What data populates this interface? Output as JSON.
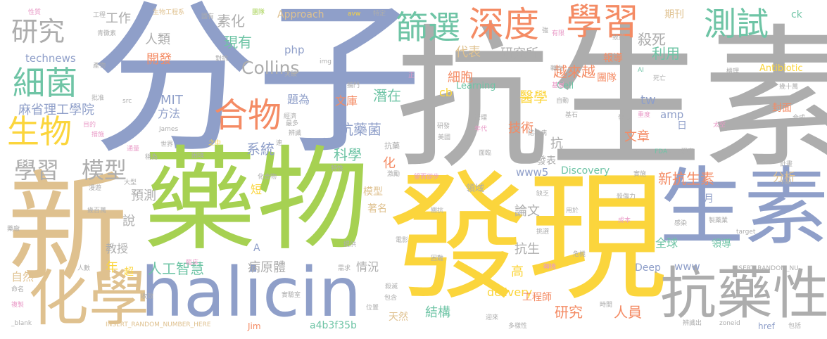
{
  "palette": {
    "blue": "#8f9fc9",
    "gray": "#adadad",
    "green": "#a6d152",
    "yellow": "#fbd53c",
    "orange": "#f48b64",
    "tan": "#dfc18f",
    "teal": "#6ec4a5",
    "pink": "#e99ac7"
  },
  "words": [
    {
      "text": "分子",
      "color": "blue"
    },
    {
      "text": "抗生素",
      "color": "gray"
    },
    {
      "text": "藥物",
      "color": "green"
    },
    {
      "text": "發現",
      "color": "yellow"
    },
    {
      "text": "新",
      "color": "tan"
    },
    {
      "text": "halicin",
      "color": "blue"
    },
    {
      "text": "生素",
      "color": "blue"
    },
    {
      "text": "抗藥性",
      "color": "gray"
    },
    {
      "text": "化學",
      "color": "tan"
    },
    {
      "text": "深度",
      "color": "orange"
    },
    {
      "text": "學習",
      "color": "orange"
    },
    {
      "text": "測試",
      "color": "teal"
    },
    {
      "text": "篩選",
      "color": "teal"
    },
    {
      "text": "研究",
      "color": "gray"
    },
    {
      "text": "細菌",
      "color": "teal"
    },
    {
      "text": "合物",
      "color": "orange"
    },
    {
      "text": "生物",
      "color": "yellow"
    },
    {
      "text": "學習",
      "color": "gray"
    },
    {
      "text": "模型",
      "color": "gray"
    },
    {
      "text": "工作",
      "color": "gray"
    },
    {
      "text": "素化",
      "color": "gray"
    },
    {
      "text": "人類",
      "color": "gray"
    },
    {
      "text": "現有",
      "color": "teal"
    },
    {
      "text": "Collins",
      "color": "gray"
    },
    {
      "text": "開發",
      "color": "orange"
    },
    {
      "text": "technews",
      "color": "blue"
    },
    {
      "text": "php",
      "color": "blue"
    },
    {
      "text": "細胞",
      "color": "orange"
    },
    {
      "text": "代表",
      "color": "tan"
    },
    {
      "text": "研究所",
      "color": "gray"
    },
    {
      "text": "越來越",
      "color": "orange"
    },
    {
      "text": "殺死",
      "color": "gray"
    },
    {
      "text": "利用",
      "color": "teal"
    },
    {
      "text": "期刊",
      "color": "tan"
    },
    {
      "text": "Approach",
      "color": "tan"
    },
    {
      "text": "ck",
      "color": "teal"
    },
    {
      "text": "Antibiotic",
      "color": "yellow"
    },
    {
      "text": "麻省理工學院",
      "color": "blue"
    },
    {
      "text": "MIT",
      "color": "blue"
    },
    {
      "text": "方法",
      "color": "blue"
    },
    {
      "text": "題為",
      "color": "blue"
    },
    {
      "text": "文庫",
      "color": "orange"
    },
    {
      "text": "潛在",
      "color": "teal"
    },
    {
      "text": "cb",
      "color": "yellow"
    },
    {
      "text": "醫學",
      "color": "yellow"
    },
    {
      "text": "Cell",
      "color": "teal"
    },
    {
      "text": "Learning",
      "color": "teal"
    },
    {
      "text": "報導",
      "color": "orange"
    },
    {
      "text": "tw",
      "color": "blue"
    },
    {
      "text": "團隊",
      "color": "orange"
    },
    {
      "text": "amp",
      "color": "blue"
    },
    {
      "text": "日",
      "color": "blue"
    },
    {
      "text": "抗藥菌",
      "color": "blue"
    },
    {
      "text": "技術",
      "color": "orange"
    },
    {
      "text": "文章",
      "color": "orange"
    },
    {
      "text": "封面",
      "color": "orange"
    },
    {
      "text": "系統",
      "color": "blue"
    },
    {
      "text": "科學",
      "color": "teal"
    },
    {
      "text": "抗",
      "color": "gray"
    },
    {
      "text": "發表",
      "color": "gray"
    },
    {
      "text": "化",
      "color": "orange"
    },
    {
      "text": "www5",
      "color": "blue"
    },
    {
      "text": "Discovery",
      "color": "teal"
    },
    {
      "text": "新抗生素",
      "color": "orange"
    },
    {
      "text": "分析",
      "color": "tan"
    },
    {
      "text": "預測",
      "color": "gray"
    },
    {
      "text": "短",
      "color": "yellow"
    },
    {
      "text": "模型",
      "color": "tan"
    },
    {
      "text": "領域",
      "color": "gray"
    },
    {
      "text": "著名",
      "color": "tan"
    },
    {
      "text": "說",
      "color": "gray"
    },
    {
      "text": "論文",
      "color": "gray"
    },
    {
      "text": "月",
      "color": "blue"
    },
    {
      "text": "教授",
      "color": "gray"
    },
    {
      "text": "A",
      "color": "blue"
    },
    {
      "text": "抗生",
      "color": "gray"
    },
    {
      "text": "全球",
      "color": "teal"
    },
    {
      "text": "領導",
      "color": "teal"
    },
    {
      "text": "年",
      "color": "yellow"
    },
    {
      "text": "人工智慧",
      "color": "teal"
    },
    {
      "text": "病原體",
      "color": "gray"
    },
    {
      "text": "情況",
      "color": "gray"
    },
    {
      "text": "高",
      "color": "yellow"
    },
    {
      "text": "Deep",
      "color": "blue"
    },
    {
      "text": "www",
      "color": "blue"
    },
    {
      "text": "自然",
      "color": "tan"
    },
    {
      "text": "超",
      "color": "yellow"
    },
    {
      "text": "結構",
      "color": "teal"
    },
    {
      "text": "delivery",
      "color": "yellow"
    },
    {
      "text": "工程師",
      "color": "orange"
    },
    {
      "text": "研究",
      "color": "orange"
    },
    {
      "text": "人員",
      "color": "orange"
    },
    {
      "text": "天然",
      "color": "tan"
    },
    {
      "text": "a4b3f35b",
      "color": "teal"
    },
    {
      "text": "Jim",
      "color": "orange"
    },
    {
      "text": "href",
      "color": "blue"
    },
    {
      "text": "INSERT_RANDOM_NUMBER_HERE",
      "color": "tan"
    },
    {
      "text": "INSERT_RANDOM_NU",
      "color": "gray"
    },
    {
      "text": "性質",
      "color": "pink"
    },
    {
      "text": "青黴素",
      "color": "gray"
    },
    {
      "text": "工程",
      "color": "gray"
    },
    {
      "text": "國有",
      "color": "gray"
    },
    {
      "text": "生物工程系",
      "color": "tan"
    },
    {
      "text": "團隊",
      "color": "green"
    },
    {
      "text": "avw",
      "color": "yellow"
    },
    {
      "text": "特定",
      "color": "gray"
    },
    {
      "text": "img",
      "color": "gray"
    },
    {
      "text": "有限",
      "color": "pink"
    },
    {
      "text": "強",
      "color": "gray"
    },
    {
      "text": "致病",
      "color": "gray"
    },
    {
      "text": "產物",
      "color": "gray"
    },
    {
      "text": "對抗",
      "color": "gray"
    },
    {
      "text": "突破",
      "color": "gray"
    },
    {
      "text": "轉向",
      "color": "gray"
    },
    {
      "text": "機理",
      "color": "gray"
    },
    {
      "text": "捕門",
      "color": "gray"
    },
    {
      "text": "正",
      "color": "pink"
    },
    {
      "text": "基層",
      "color": "pink"
    },
    {
      "text": "AI",
      "color": "teal"
    },
    {
      "text": "死亡",
      "color": "gray"
    },
    {
      "text": "批准",
      "color": "gray"
    },
    {
      "text": "src",
      "color": "gray"
    },
    {
      "text": "經濟",
      "color": "gray"
    },
    {
      "text": "自動",
      "color": "gray"
    },
    {
      "text": "幾十萬",
      "color": "gray"
    },
    {
      "text": "目的",
      "color": "pink"
    },
    {
      "text": "措施",
      "color": "pink"
    },
    {
      "text": "James",
      "color": "gray"
    },
    {
      "text": "辨識",
      "color": "gray"
    },
    {
      "text": "最多",
      "color": "gray"
    },
    {
      "text": "研發",
      "color": "gray"
    },
    {
      "text": "管理",
      "color": "gray"
    },
    {
      "text": "年代",
      "color": "pink"
    },
    {
      "text": "發展",
      "color": "gray"
    },
    {
      "text": "重度",
      "color": "pink"
    },
    {
      "text": "合成",
      "color": "gray"
    },
    {
      "text": "結核病",
      "color": "gray"
    },
    {
      "text": "基石",
      "color": "gray"
    },
    {
      "text": "太空",
      "color": "pink"
    },
    {
      "text": "世界",
      "color": "gray"
    },
    {
      "text": "之中",
      "color": "yellow"
    },
    {
      "text": "速",
      "color": "gray"
    },
    {
      "text": "抗藥",
      "color": "gray"
    },
    {
      "text": "美國",
      "color": "gray"
    },
    {
      "text": "通量",
      "color": "pink"
    },
    {
      "text": "稱為",
      "color": "gray"
    },
    {
      "text": "困境",
      "color": "gray"
    },
    {
      "text": "面臨",
      "color": "gray"
    },
    {
      "text": "FDA",
      "color": "teal"
    },
    {
      "text": "現實",
      "color": "gray"
    },
    {
      "text": "計畫",
      "color": "gray"
    },
    {
      "text": "大型",
      "color": "gray"
    },
    {
      "text": "特性",
      "color": "gray"
    },
    {
      "text": "激勵",
      "color": "gray"
    },
    {
      "text": "望而卻步",
      "color": "pink"
    },
    {
      "text": "實施",
      "color": "gray"
    },
    {
      "text": "漫遊",
      "color": "gray"
    },
    {
      "text": "化合物",
      "color": "gray"
    },
    {
      "text": "缺乏",
      "color": "gray"
    },
    {
      "text": "殺傷力",
      "color": "gray"
    },
    {
      "text": "Hal",
      "color": "gray"
    },
    {
      "text": "幾百萬",
      "color": "gray"
    },
    {
      "text": "關抗",
      "color": "gray"
    },
    {
      "text": "用於",
      "color": "gray"
    },
    {
      "text": "成本",
      "color": "pink"
    },
    {
      "text": "藥廠",
      "color": "gray"
    },
    {
      "text": "挑選",
      "color": "gray"
    },
    {
      "text": "感染",
      "color": "gray"
    },
    {
      "text": "製藥業",
      "color": "gray"
    },
    {
      "text": "target",
      "color": "gray"
    },
    {
      "text": "提供",
      "color": "gray"
    },
    {
      "text": "電影",
      "color": "gray"
    },
    {
      "text": "危機",
      "color": "gray"
    },
    {
      "text": "人數",
      "color": "gray"
    },
    {
      "text": "臨床",
      "color": "pink"
    },
    {
      "text": "需求",
      "color": "gray"
    },
    {
      "text": "困難",
      "color": "gray"
    },
    {
      "text": "轉機",
      "color": "pink"
    },
    {
      "text": "殺滅",
      "color": "gray"
    },
    {
      "text": "包含",
      "color": "gray"
    },
    {
      "text": "命名",
      "color": "gray"
    },
    {
      "text": "複製",
      "color": "pink"
    },
    {
      "text": "收效",
      "color": "gray"
    },
    {
      "text": "實驗室",
      "color": "gray"
    },
    {
      "text": "位置",
      "color": "gray"
    },
    {
      "text": "迎來",
      "color": "gray"
    },
    {
      "text": "多樣性",
      "color": "gray"
    },
    {
      "text": "時間",
      "color": "gray"
    },
    {
      "text": "辨識出",
      "color": "gray"
    },
    {
      "text": "zoneid",
      "color": "gray"
    },
    {
      "text": "包括",
      "color": "gray"
    },
    {
      "text": "_blank",
      "color": "gray"
    }
  ]
}
